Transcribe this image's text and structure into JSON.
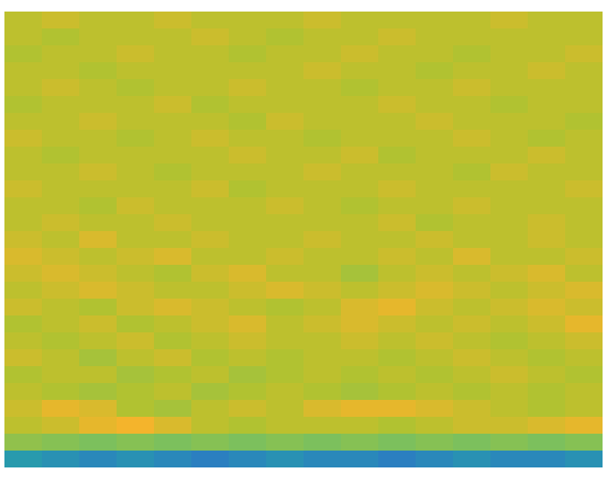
{
  "chart_data": {
    "type": "heatmap",
    "tick_labels": false,
    "cells": [
      [
        3.0,
        3.1,
        3.0,
        3.0,
        3.1,
        3.0,
        3.0,
        3.0,
        3.1,
        3.0,
        3.0,
        3.0,
        3.0,
        3.1,
        3.0,
        3.0
      ],
      [
        3.0,
        2.9,
        3.0,
        3.0,
        3.0,
        3.1,
        3.0,
        2.9,
        3.0,
        3.0,
        3.1,
        3.0,
        3.0,
        3.0,
        3.0,
        3.0
      ],
      [
        2.9,
        3.0,
        3.0,
        3.1,
        3.0,
        3.0,
        2.9,
        3.0,
        3.0,
        3.1,
        3.0,
        3.0,
        2.9,
        3.0,
        3.0,
        3.1
      ],
      [
        3.0,
        3.0,
        2.9,
        3.0,
        3.0,
        3.0,
        3.0,
        3.0,
        3.1,
        3.0,
        3.0,
        2.9,
        3.0,
        3.0,
        3.1,
        3.0
      ],
      [
        3.0,
        3.1,
        3.0,
        2.9,
        3.0,
        3.0,
        3.1,
        3.0,
        3.0,
        2.9,
        3.0,
        3.0,
        3.1,
        3.0,
        3.0,
        3.0
      ],
      [
        2.9,
        3.0,
        3.0,
        3.0,
        3.1,
        2.9,
        3.0,
        3.0,
        3.0,
        3.0,
        3.1,
        3.0,
        3.0,
        2.9,
        3.0,
        3.0
      ],
      [
        3.0,
        3.0,
        3.1,
        3.0,
        3.0,
        3.0,
        2.9,
        3.1,
        3.0,
        3.0,
        3.0,
        3.1,
        3.0,
        3.0,
        3.0,
        2.9
      ],
      [
        3.1,
        3.0,
        3.0,
        2.9,
        3.0,
        3.1,
        3.0,
        3.0,
        2.9,
        3.0,
        3.0,
        3.0,
        3.1,
        3.0,
        2.9,
        3.0
      ],
      [
        3.0,
        2.9,
        3.0,
        3.0,
        3.0,
        3.0,
        3.1,
        3.0,
        3.0,
        3.1,
        2.9,
        3.0,
        3.0,
        3.0,
        3.1,
        3.0
      ],
      [
        3.0,
        3.0,
        3.1,
        3.0,
        2.9,
        3.0,
        3.0,
        3.0,
        3.1,
        3.0,
        3.0,
        3.0,
        2.9,
        3.1,
        3.0,
        3.0
      ],
      [
        3.1,
        3.0,
        3.0,
        3.0,
        3.0,
        3.1,
        2.9,
        3.0,
        3.0,
        3.0,
        3.1,
        3.0,
        3.0,
        3.0,
        3.0,
        3.1
      ],
      [
        3.0,
        3.0,
        2.9,
        3.1,
        3.0,
        3.0,
        3.0,
        3.1,
        3.0,
        2.9,
        3.0,
        3.0,
        3.1,
        3.0,
        3.0,
        3.0
      ],
      [
        3.0,
        3.1,
        3.0,
        3.0,
        3.1,
        3.0,
        3.0,
        3.0,
        3.0,
        3.0,
        3.1,
        2.9,
        3.0,
        3.0,
        3.1,
        3.0
      ],
      [
        3.1,
        3.0,
        3.2,
        3.0,
        3.0,
        3.1,
        3.0,
        3.0,
        3.1,
        3.0,
        3.0,
        3.1,
        3.0,
        3.0,
        3.1,
        3.0
      ],
      [
        3.2,
        3.1,
        3.0,
        3.1,
        3.2,
        3.0,
        3.0,
        3.1,
        3.0,
        3.0,
        3.1,
        3.0,
        3.2,
        3.0,
        3.0,
        3.1
      ],
      [
        3.1,
        3.2,
        3.1,
        3.0,
        2.9,
        3.1,
        3.2,
        3.0,
        3.0,
        2.8,
        3.0,
        3.1,
        3.0,
        3.1,
        3.2,
        3.0
      ],
      [
        3.0,
        3.1,
        3.2,
        3.1,
        3.0,
        3.0,
        3.1,
        3.2,
        3.1,
        3.0,
        3.1,
        3.2,
        3.1,
        3.0,
        3.1,
        3.2
      ],
      [
        3.1,
        3.0,
        2.9,
        3.1,
        3.2,
        3.1,
        3.0,
        2.9,
        3.0,
        3.2,
        3.3,
        3.1,
        3.0,
        3.1,
        3.2,
        3.1
      ],
      [
        2.9,
        3.0,
        3.1,
        2.9,
        3.0,
        3.1,
        3.2,
        3.0,
        3.1,
        3.2,
        3.1,
        3.0,
        3.1,
        3.0,
        3.1,
        3.3
      ],
      [
        3.0,
        2.9,
        3.0,
        3.1,
        2.9,
        3.0,
        3.1,
        3.0,
        3.0,
        3.1,
        3.0,
        3.1,
        3.0,
        2.9,
        3.0,
        3.1
      ],
      [
        3.1,
        3.0,
        2.8,
        3.0,
        3.1,
        2.9,
        3.0,
        2.9,
        3.0,
        3.0,
        2.9,
        3.0,
        3.1,
        3.0,
        2.9,
        3.0
      ],
      [
        2.9,
        3.0,
        3.0,
        2.8,
        2.9,
        3.0,
        2.8,
        2.9,
        3.0,
        2.9,
        3.0,
        2.9,
        3.0,
        3.1,
        3.0,
        2.9
      ],
      [
        3.0,
        2.9,
        2.8,
        2.9,
        3.0,
        2.8,
        2.9,
        3.0,
        2.9,
        2.8,
        2.9,
        3.0,
        2.9,
        3.0,
        2.9,
        3.0
      ],
      [
        3.1,
        3.3,
        3.2,
        2.9,
        2.8,
        3.0,
        3.1,
        3.0,
        3.2,
        3.3,
        3.3,
        3.2,
        3.1,
        3.0,
        2.9,
        3.0
      ],
      [
        3.0,
        3.1,
        3.3,
        3.4,
        3.2,
        3.0,
        2.9,
        3.0,
        3.0,
        3.0,
        2.9,
        3.0,
        3.1,
        3.1,
        3.2,
        3.3
      ],
      [
        2.6,
        2.5,
        2.4,
        2.5,
        2.4,
        2.5,
        2.4,
        2.5,
        2.4,
        2.5,
        2.4,
        2.5,
        2.4,
        2.5,
        2.4,
        2.5
      ],
      [
        1.4,
        1.3,
        1.2,
        1.3,
        1.2,
        1.1,
        1.2,
        1.3,
        1.2,
        1.2,
        1.1,
        1.2,
        1.3,
        1.2,
        1.2,
        1.3
      ]
    ]
  }
}
